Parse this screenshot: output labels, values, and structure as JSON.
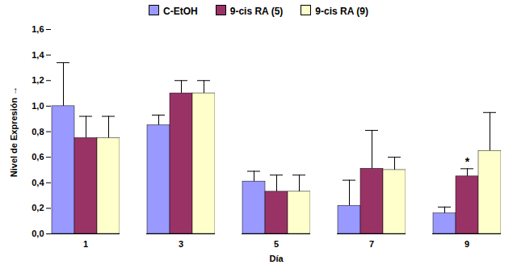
{
  "chart_data": {
    "type": "bar",
    "xlabel": "Día",
    "ylabel": "Nivel de Expresión",
    "categories": [
      "1",
      "3",
      "5",
      "7",
      "9"
    ],
    "series": [
      {
        "name": "C-EtOH",
        "color": "#9999ff",
        "values": [
          1.0,
          0.85,
          0.41,
          0.22,
          0.16
        ],
        "errors": [
          0.34,
          0.08,
          0.08,
          0.2,
          0.05
        ]
      },
      {
        "name": "9-cis RA (5)",
        "color": "#993366",
        "values": [
          0.75,
          1.1,
          0.33,
          0.51,
          0.45
        ],
        "errors": [
          0.17,
          0.1,
          0.13,
          0.3,
          0.06
        ]
      },
      {
        "name": "9-cis RA (9)",
        "color": "#ffffcc",
        "values": [
          0.75,
          1.1,
          0.33,
          0.5,
          0.65
        ],
        "errors": [
          0.17,
          0.1,
          0.13,
          0.1,
          0.3
        ]
      }
    ],
    "ylim": [
      0,
      1.6
    ],
    "yticks": [
      {
        "value": 0,
        "label": "0,0"
      },
      {
        "value": 0.2,
        "label": "0,2"
      },
      {
        "value": 0.4,
        "label": "0,4"
      },
      {
        "value": 0.6,
        "label": "0,6"
      },
      {
        "value": 0.8,
        "label": "0,8"
      },
      {
        "value": 1.0,
        "label": "1,0"
      },
      {
        "value": 1.2,
        "label": "1,2"
      },
      {
        "value": 1.4,
        "label": "1,4"
      },
      {
        "value": 1.6,
        "label": "1,6"
      }
    ],
    "annotations": [
      {
        "text": "*",
        "category": "9",
        "series": "9-cis RA (5)"
      }
    ],
    "legend": "top",
    "grid": false
  }
}
